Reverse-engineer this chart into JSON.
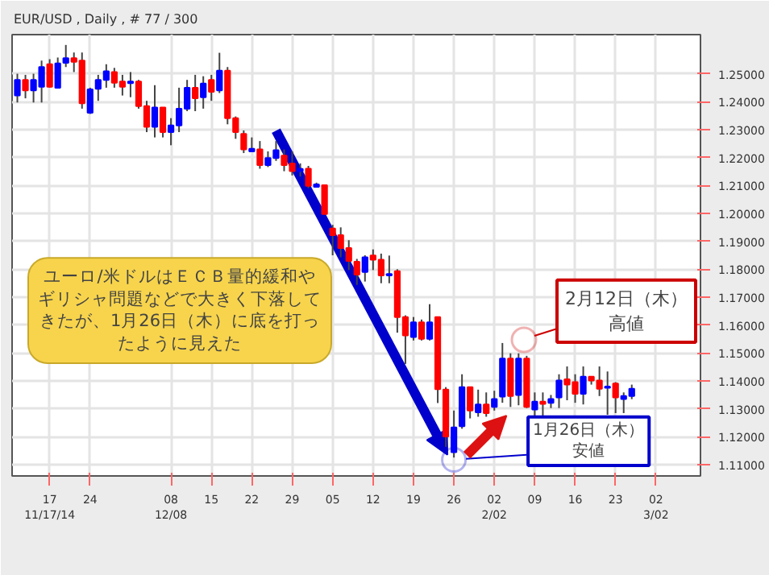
{
  "chart_data": {
    "type": "candlestick",
    "title": "EUR/USD , Daily , # 77 / 300",
    "categories": [
      null,
      null,
      null,
      null,
      "17\n11/17/14",
      null,
      null,
      null,
      null,
      "24",
      null,
      null,
      null,
      null,
      null,
      null,
      null,
      null,
      null,
      "08\n12/08",
      null,
      null,
      null,
      null,
      "15",
      null,
      null,
      null,
      null,
      "22",
      null,
      null,
      null,
      null,
      "29",
      null,
      null,
      null,
      null,
      "05",
      null,
      null,
      null,
      null,
      "12",
      null,
      null,
      null,
      null,
      "19",
      null,
      null,
      null,
      null,
      "26",
      null,
      null,
      null,
      null,
      "02\n2/02",
      null,
      null,
      null,
      null,
      "09",
      null,
      null,
      null,
      null,
      "16",
      null,
      null,
      null,
      null,
      "23",
      null,
      null,
      null,
      null,
      "02\n3/02",
      null,
      null,
      null,
      null,
      null
    ],
    "ohlc": [
      [
        1.2422,
        1.25,
        1.2397,
        1.2478
      ],
      [
        1.2478,
        1.2496,
        1.2412,
        1.244
      ],
      [
        1.244,
        1.25,
        1.2397,
        1.2478
      ],
      [
        1.2453,
        1.2547,
        1.2397,
        1.2524
      ],
      [
        1.2534,
        1.2552,
        1.245,
        1.2453
      ],
      [
        1.245,
        1.2558,
        1.245,
        1.2537
      ],
      [
        1.2539,
        1.2603,
        1.2524,
        1.2556
      ],
      [
        1.2556,
        1.2576,
        1.2506,
        1.2543
      ],
      [
        1.2547,
        1.2576,
        1.2375,
        1.2394
      ],
      [
        1.236,
        1.245,
        1.2356,
        1.2444
      ],
      [
        1.2446,
        1.2496,
        1.2403,
        1.2478
      ],
      [
        1.2478,
        1.2534,
        1.245,
        1.2509
      ],
      [
        1.2506,
        1.2521,
        1.245,
        1.2468
      ],
      [
        1.2472,
        1.2496,
        1.2422,
        1.2453
      ],
      [
        1.2466,
        1.2506,
        1.2416,
        1.2472
      ],
      [
        1.2472,
        1.2478,
        1.2375,
        1.2384
      ],
      [
        1.2384,
        1.2403,
        1.2291,
        1.231
      ],
      [
        1.231,
        1.2459,
        1.2272,
        1.2379
      ],
      [
        1.2379,
        1.2379,
        1.2272,
        1.2291
      ],
      [
        1.2291,
        1.2341,
        1.2244,
        1.2315
      ],
      [
        1.2315,
        1.245,
        1.2291,
        1.2375
      ],
      [
        1.2375,
        1.2478,
        1.2366,
        1.245
      ],
      [
        1.245,
        1.2496,
        1.2366,
        1.2412
      ],
      [
        1.2416,
        1.2491,
        1.2375,
        1.2465
      ],
      [
        1.2478,
        1.2496,
        1.2403,
        1.2435
      ],
      [
        1.244,
        1.2575,
        1.2431,
        1.2511
      ],
      [
        1.2511,
        1.2524,
        1.2319,
        1.2341
      ],
      [
        1.2341,
        1.2347,
        1.2267,
        1.2291
      ],
      [
        1.2285,
        1.2297,
        1.2216,
        1.2229
      ],
      [
        1.2222,
        1.2272,
        1.2222,
        1.2231
      ],
      [
        1.2229,
        1.2259,
        1.216,
        1.2173
      ],
      [
        1.2173,
        1.2222,
        1.2166,
        1.2198
      ],
      [
        1.2198,
        1.2259,
        1.2188,
        1.2226
      ],
      [
        1.2207,
        1.2229,
        1.2151,
        1.2173
      ],
      [
        1.2179,
        1.2222,
        1.2136,
        1.2151
      ],
      [
        1.2151,
        1.2179,
        1.2132,
        1.2159
      ],
      [
        1.216,
        1.217,
        1.209,
        1.2099
      ],
      [
        1.2095,
        1.211,
        1.2095,
        1.2104
      ],
      [
        1.2101,
        1.2101,
        1.1998,
        1.1998
      ],
      [
        1.1946,
        1.1959,
        1.185,
        1.1922
      ],
      [
        1.1922,
        1.195,
        1.1843,
        1.1876
      ],
      [
        1.1876,
        1.1904,
        1.1797,
        1.183
      ],
      [
        1.1827,
        1.1837,
        1.1744,
        1.1781
      ],
      [
        1.179,
        1.185,
        1.1756,
        1.1843
      ],
      [
        1.1849,
        1.1871,
        1.1797,
        1.1834
      ],
      [
        1.1834,
        1.1856,
        1.175,
        1.1778
      ],
      [
        1.1778,
        1.1849,
        1.175,
        1.1783
      ],
      [
        1.1793,
        1.18,
        1.1573,
        1.1629
      ],
      [
        1.1629,
        1.1635,
        1.1461,
        1.1563
      ],
      [
        1.1557,
        1.1629,
        1.1545,
        1.161
      ],
      [
        1.161,
        1.162,
        1.1545,
        1.1551
      ],
      [
        1.1551,
        1.1675,
        1.1545,
        1.161
      ],
      [
        1.1629,
        1.1629,
        1.1321,
        1.1371
      ],
      [
        1.1369,
        1.1378,
        1.1164,
        1.1201
      ],
      [
        1.1145,
        1.1294,
        1.1126,
        1.1234
      ],
      [
        1.1238,
        1.1424,
        1.1229,
        1.1378
      ],
      [
        1.1378,
        1.1378,
        1.1266,
        1.1294
      ],
      [
        1.1288,
        1.1369,
        1.1272,
        1.1316
      ],
      [
        1.1316,
        1.1359,
        1.1272,
        1.1285
      ],
      [
        1.1307,
        1.1365,
        1.1294,
        1.1335
      ],
      [
        1.1344,
        1.1536,
        1.1322,
        1.148
      ],
      [
        1.148,
        1.1499,
        1.1307,
        1.1346
      ],
      [
        1.135,
        1.1499,
        1.1313,
        1.148
      ],
      [
        1.148,
        1.149,
        1.1303,
        1.1307
      ],
      [
        1.1298,
        1.1359,
        1.1272,
        1.1326
      ],
      [
        1.1326,
        1.1359,
        1.1272,
        1.1318
      ],
      [
        1.1322,
        1.135,
        1.1303,
        1.1335
      ],
      [
        1.1341,
        1.1424,
        1.1303,
        1.1402
      ],
      [
        1.1406,
        1.1452,
        1.1331,
        1.1387
      ],
      [
        1.1396,
        1.1424,
        1.1322,
        1.1354
      ],
      [
        1.1354,
        1.1452,
        1.1316,
        1.1415
      ],
      [
        1.1415,
        1.1415,
        1.1387,
        1.1402
      ],
      [
        1.1402,
        1.1452,
        1.1346,
        1.1372
      ],
      [
        1.1376,
        1.1434,
        1.1279,
        1.138
      ],
      [
        1.1391,
        1.1396,
        1.1285,
        1.1341
      ],
      [
        1.1335,
        1.1359,
        1.1285,
        1.1346
      ],
      [
        1.1346,
        1.1387,
        1.1335,
        1.1372
      ],
      null,
      null,
      null,
      null,
      null,
      null,
      null,
      null
    ],
    "colors": [
      "#0000ff",
      "#ff0000",
      "#0000ff",
      "#0000ff",
      "#ff0000",
      "#0000ff",
      "#0000ff",
      "#ff0000",
      "#ff0000",
      "#0000ff",
      "#0000ff",
      "#0000ff",
      "#ff0000",
      "#ff0000",
      "#0000ff",
      "#ff0000",
      "#ff0000",
      "#0000ff",
      "#ff0000",
      "#0000ff",
      "#0000ff",
      "#0000ff",
      "#ff0000",
      "#0000ff",
      "#ff0000",
      "#0000ff",
      "#ff0000",
      "#ff0000",
      "#ff0000",
      "#0000ff",
      "#ff0000",
      "#0000ff",
      "#0000ff",
      "#ff0000",
      "#ff0000",
      "#0000ff",
      "#ff0000",
      "#0000ff",
      "#ff0000",
      "#ff0000",
      "#ff0000",
      "#ff0000",
      "#ff0000",
      "#0000ff",
      "#ff0000",
      "#ff0000",
      "#0000ff",
      "#ff0000",
      "#ff0000",
      "#0000ff",
      "#ff0000",
      "#0000ff",
      "#ff0000",
      "#ff0000",
      "#0000ff",
      "#0000ff",
      "#ff0000",
      "#0000ff",
      "#ff0000",
      "#0000ff",
      "#0000ff",
      "#ff0000",
      "#0000ff",
      "#ff0000",
      "#0000ff",
      "#ff0000",
      "#0000ff",
      "#0000ff",
      "#ff0000",
      "#ff0000",
      "#0000ff",
      "#ff0000",
      "#ff0000",
      "#0000ff",
      "#ff0000",
      "#0000ff",
      "#0000ff",
      null,
      null,
      null,
      null,
      null,
      null,
      null,
      null
    ],
    "ylim": [
      1.106,
      1.264
    ],
    "yticks": [
      {
        "value": 1.11,
        "label": "1.11000"
      },
      {
        "value": 1.12,
        "label": "1.12000"
      },
      {
        "value": 1.13,
        "label": "1.13000"
      },
      {
        "value": 1.14,
        "label": "1.14000"
      },
      {
        "value": 1.15,
        "label": "1.15000"
      },
      {
        "value": 1.16,
        "label": "1.16000"
      },
      {
        "value": 1.17,
        "label": "1.17000"
      },
      {
        "value": 1.18,
        "label": "1.18000"
      },
      {
        "value": 1.19,
        "label": "1.19000"
      },
      {
        "value": 1.2,
        "label": "1.20000"
      },
      {
        "value": 1.21,
        "label": "1.21000"
      },
      {
        "value": 1.22,
        "label": "1.22000"
      },
      {
        "value": 1.23,
        "label": "1.23000"
      },
      {
        "value": 1.24,
        "label": "1.24000"
      },
      {
        "value": 1.25,
        "label": "1.25000"
      }
    ],
    "grid": true,
    "annotations": [
      "ユーロ/米ドルはＥＣＢ量的緩和やギリシャ問題などで大きく下落してきたが、1月26日（木）に底を打ったように見えた",
      {
        "text": "1月26日（木）安値",
        "x": "26",
        "y": 1.1126
      },
      "2月12日（木）高値"
    ]
  }
}
